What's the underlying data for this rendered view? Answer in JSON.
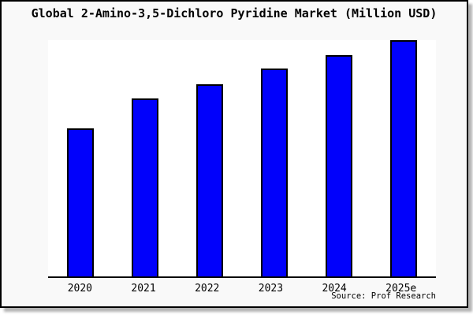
{
  "title": "Global 2-Amino-3,5-Dichloro Pyridine Market (Million USD)",
  "source": "Source: Prof Research",
  "colors": {
    "bar_fill": "#0101FB",
    "bar_border": "#000000",
    "figure_background": "#f9f9f9",
    "plot_background": "#ffffff",
    "axis": "#000000"
  },
  "chart_data": {
    "type": "bar",
    "title": "Global 2-Amino-3,5-Dichloro Pyridine Market (Million USD)",
    "categories": [
      "2020",
      "2021",
      "2022",
      "2023",
      "2024",
      "2025e"
    ],
    "values": [
      62.7,
      75.2,
      81.4,
      87.9,
      93.7,
      100
    ],
    "units": "relative height, 2025e = 100 (no y-axis scale shown in image)",
    "xlabel": "",
    "ylabel": "",
    "ylim": [
      0,
      100
    ],
    "grid": false,
    "legend": "none",
    "y_axis_shown": false,
    "annotation": "Source: Prof Research"
  }
}
